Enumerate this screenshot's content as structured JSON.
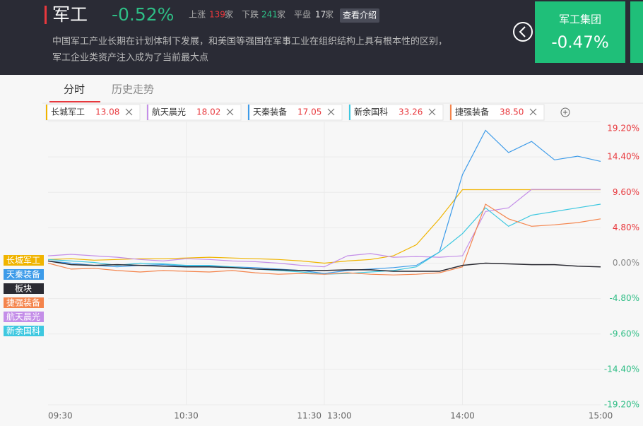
{
  "header": {
    "title": "军工",
    "change": "-0.52%",
    "up": {
      "label": "上涨",
      "count": 139,
      "unit": "家"
    },
    "down": {
      "label": "下跌",
      "count": 241,
      "unit": "家"
    },
    "flat": {
      "label": "平盘",
      "count": 17,
      "unit": "家"
    },
    "button": "查看介绍",
    "description": [
      "中国军工产业长期在计划体制下发展，和美国等强国在军事工业在组织结构上具有根本性的区别，",
      "军工企业类资产注入成为了当前最大点"
    ],
    "card": {
      "name": "军工集团",
      "change": "-0.47%"
    }
  },
  "tabs": [
    "分时",
    "历史走势"
  ],
  "chart_data": {
    "type": "line",
    "x": [
      "09:30",
      "09:40",
      "09:50",
      "10:00",
      "10:10",
      "10:20",
      "10:30",
      "10:40",
      "10:50",
      "11:00",
      "11:10",
      "11:20",
      "11:30",
      "13:10",
      "13:20",
      "13:30",
      "13:40",
      "13:50",
      "14:00",
      "14:10",
      "14:20",
      "14:30",
      "14:40",
      "14:50",
      "15:00"
    ],
    "xticks": [
      "09:30",
      "10:30",
      "11:30",
      "13:00",
      "14:00",
      "15:00"
    ],
    "ylim": [
      -19.2,
      19.2
    ],
    "yticks": [
      {
        "value": 19.2,
        "label": "19.20%"
      },
      {
        "value": 14.4,
        "label": "14.40%"
      },
      {
        "value": 9.6,
        "label": "9.60%"
      },
      {
        "value": 4.8,
        "label": "4.80%"
      },
      {
        "value": 0,
        "label": "0.00%"
      },
      {
        "value": -4.8,
        "label": "-4.80%"
      },
      {
        "value": -9.6,
        "label": "-9.60%"
      },
      {
        "value": -14.4,
        "label": "-14.40%"
      },
      {
        "value": -19.2,
        "label": "-19.20%"
      }
    ],
    "grid": true,
    "series": [
      {
        "name": "长城军工",
        "price": "13.08",
        "color": "#f0b400",
        "values": [
          0.5,
          0.6,
          0.4,
          0.5,
          0.6,
          0.6,
          0.7,
          0.8,
          0.7,
          0.6,
          0.5,
          0.3,
          0.0,
          0.3,
          0.5,
          1.0,
          2.5,
          6.0,
          9.96,
          9.96,
          9.96,
          9.96,
          9.96,
          9.96,
          9.96
        ]
      },
      {
        "name": "航天晨光",
        "price": "18.02",
        "color": "#c48ee8",
        "values": [
          1.0,
          1.2,
          1.0,
          0.8,
          0.5,
          0.3,
          0.6,
          0.5,
          0.3,
          0.2,
          0.0,
          -0.3,
          -0.5,
          1.0,
          1.3,
          0.8,
          0.9,
          0.8,
          1.0,
          7.0,
          7.5,
          10.0,
          10.0,
          10.0,
          10.0
        ]
      },
      {
        "name": "天秦装备",
        "price": "17.05",
        "color": "#3d9be9",
        "values": [
          0.3,
          0.0,
          -0.3,
          -0.5,
          -0.3,
          -0.2,
          -0.4,
          -0.4,
          -0.5,
          -0.6,
          -0.8,
          -1.0,
          -1.4,
          -1.0,
          -0.8,
          -0.6,
          -0.3,
          1.5,
          12.0,
          18.0,
          15.0,
          16.5,
          14.0,
          14.5,
          13.8
        ]
      },
      {
        "name": "新余国科",
        "price": "33.26",
        "color": "#3ec8e0",
        "values": [
          0.5,
          0.3,
          0.1,
          -0.3,
          0.0,
          -0.1,
          -0.3,
          -0.3,
          -0.5,
          -0.8,
          -1.0,
          -1.2,
          -1.5,
          -1.4,
          -1.2,
          -1.0,
          -0.5,
          1.5,
          4.0,
          7.5,
          5.0,
          6.5,
          7.0,
          7.5,
          8.0
        ]
      },
      {
        "name": "捷强装备",
        "price": "38.50",
        "color": "#f4844c",
        "values": [
          0.0,
          -0.8,
          -0.7,
          -1.0,
          -1.2,
          -1.0,
          -1.1,
          -1.2,
          -1.0,
          -1.3,
          -1.5,
          -1.4,
          -1.5,
          -1.3,
          -1.5,
          -1.6,
          -1.5,
          -1.3,
          -0.5,
          8.0,
          6.0,
          5.0,
          5.2,
          5.5,
          6.0
        ]
      },
      {
        "name": "板块",
        "color": "#2b2b33",
        "values": [
          0.3,
          -0.2,
          -0.3,
          -0.2,
          -0.3,
          -0.4,
          -0.5,
          -0.5,
          -0.6,
          -0.8,
          -0.9,
          -1.0,
          -1.0,
          -0.9,
          -0.9,
          -1.1,
          -1.1,
          -1.1,
          -0.3,
          0.0,
          -0.1,
          -0.2,
          -0.2,
          -0.4,
          -0.5
        ]
      }
    ]
  }
}
